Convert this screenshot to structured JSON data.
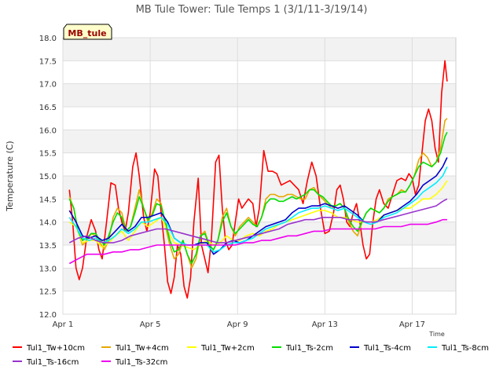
{
  "chart_data": {
    "type": "line",
    "title": "MB Tule Tower: Tule Temps 1 (3/1/11-3/19/14)",
    "xlabel": "Time",
    "ylabel": "Temperature (C)",
    "ylim": [
      12.0,
      18.0
    ],
    "xlim": [
      0,
      18
    ],
    "yticks": [
      "12.0",
      "12.5",
      "13.0",
      "13.5",
      "14.0",
      "14.5",
      "15.0",
      "15.5",
      "16.0",
      "16.5",
      "17.0",
      "17.5",
      "18.0"
    ],
    "xticks": [
      {
        "x": 0,
        "label": "Apr 1"
      },
      {
        "x": 4,
        "label": "Apr 5"
      },
      {
        "x": 8,
        "label": "Apr 9"
      },
      {
        "x": 12,
        "label": "Apr 13"
      },
      {
        "x": 16,
        "label": "Apr 17"
      }
    ],
    "annotation": "MB_tule",
    "legend_position": "bottom",
    "series": [
      {
        "name": "Tul1_Tw+10cm",
        "color": "#ff0000",
        "x": [
          0.3,
          0.45,
          0.6,
          0.75,
          0.9,
          1.1,
          1.3,
          1.5,
          1.65,
          1.8,
          2.0,
          2.2,
          2.4,
          2.55,
          2.7,
          2.85,
          3.0,
          3.2,
          3.35,
          3.5,
          3.7,
          3.85,
          4.0,
          4.2,
          4.35,
          4.5,
          4.65,
          4.8,
          4.95,
          5.1,
          5.25,
          5.4,
          5.55,
          5.7,
          5.85,
          6.0,
          6.2,
          6.35,
          6.5,
          6.65,
          6.8,
          7.0,
          7.15,
          7.3,
          7.45,
          7.6,
          7.75,
          7.9,
          8.05,
          8.2,
          8.35,
          8.5,
          8.7,
          8.85,
          9.0,
          9.2,
          9.4,
          9.6,
          9.8,
          10.0,
          10.2,
          10.4,
          10.6,
          10.8,
          11.0,
          11.2,
          11.4,
          11.6,
          11.8,
          12.0,
          12.2,
          12.4,
          12.55,
          12.7,
          12.85,
          13.0,
          13.15,
          13.3,
          13.45,
          13.6,
          13.75,
          13.9,
          14.05,
          14.2,
          14.35,
          14.5,
          14.7,
          14.9,
          15.1,
          15.3,
          15.5,
          15.7,
          15.85,
          16.0,
          16.15,
          16.3,
          16.45,
          16.6,
          16.75,
          16.9,
          17.05,
          17.2,
          17.35,
          17.5,
          17.6
        ],
        "y": [
          14.7,
          14.0,
          13.0,
          12.75,
          13.0,
          13.7,
          14.05,
          13.8,
          13.4,
          13.2,
          14.0,
          14.85,
          14.8,
          14.3,
          14.0,
          13.8,
          14.2,
          15.2,
          15.5,
          15.0,
          14.1,
          13.8,
          14.2,
          15.15,
          15.0,
          14.2,
          13.5,
          12.7,
          12.45,
          12.8,
          13.5,
          13.3,
          12.6,
          12.35,
          12.8,
          14.0,
          14.95,
          13.5,
          13.2,
          12.9,
          13.6,
          15.3,
          15.45,
          14.3,
          13.6,
          13.4,
          13.5,
          14.0,
          14.5,
          14.3,
          14.4,
          14.5,
          14.4,
          13.9,
          14.3,
          15.55,
          15.1,
          15.1,
          15.05,
          14.8,
          14.85,
          14.9,
          14.8,
          14.7,
          14.4,
          14.9,
          15.3,
          15.0,
          14.3,
          13.75,
          13.8,
          14.2,
          14.7,
          14.8,
          14.5,
          14.0,
          13.9,
          14.2,
          14.4,
          14.0,
          13.5,
          13.2,
          13.3,
          14.0,
          14.5,
          14.7,
          14.4,
          14.3,
          14.6,
          14.9,
          14.95,
          14.9,
          15.05,
          14.95,
          14.6,
          14.8,
          15.5,
          16.2,
          16.45,
          16.2,
          15.6,
          15.3,
          16.8,
          17.5,
          17.05
        ]
      },
      {
        "name": "Tul1_Tw+4cm",
        "color": "#e6a800",
        "x": [
          0.3,
          0.5,
          0.7,
          0.9,
          1.1,
          1.3,
          1.5,
          1.7,
          1.9,
          2.1,
          2.3,
          2.5,
          2.7,
          2.9,
          3.1,
          3.3,
          3.5,
          3.7,
          3.9,
          4.1,
          4.3,
          4.5,
          4.7,
          4.9,
          5.1,
          5.3,
          5.5,
          5.7,
          5.9,
          6.1,
          6.3,
          6.5,
          6.7,
          6.9,
          7.1,
          7.3,
          7.5,
          7.7,
          7.9,
          8.1,
          8.3,
          8.5,
          8.7,
          8.9,
          9.1,
          9.3,
          9.5,
          9.7,
          9.9,
          10.1,
          10.3,
          10.5,
          10.7,
          10.9,
          11.1,
          11.3,
          11.5,
          11.7,
          11.9,
          12.1,
          12.3,
          12.5,
          12.7,
          12.9,
          13.1,
          13.3,
          13.5,
          13.7,
          13.9,
          14.1,
          14.3,
          14.5,
          14.7,
          14.9,
          15.1,
          15.3,
          15.5,
          15.7,
          15.9,
          16.1,
          16.3,
          16.5,
          16.7,
          16.9,
          17.1,
          17.3,
          17.5,
          17.6
        ],
        "y": [
          14.55,
          14.3,
          13.8,
          13.5,
          13.6,
          13.75,
          13.7,
          13.55,
          13.4,
          13.6,
          14.1,
          14.3,
          14.2,
          13.8,
          13.9,
          14.3,
          14.7,
          14.3,
          14.0,
          14.2,
          14.5,
          14.4,
          13.9,
          13.5,
          13.2,
          13.3,
          13.6,
          13.3,
          13.0,
          13.2,
          13.7,
          13.8,
          13.5,
          13.4,
          13.6,
          14.1,
          14.3,
          13.9,
          13.7,
          13.9,
          14.0,
          14.1,
          14.0,
          13.9,
          14.1,
          14.5,
          14.6,
          14.6,
          14.55,
          14.55,
          14.6,
          14.6,
          14.55,
          14.5,
          14.5,
          14.7,
          14.75,
          14.6,
          14.5,
          14.4,
          14.3,
          14.35,
          14.4,
          14.3,
          14.0,
          13.8,
          13.7,
          14.0,
          14.2,
          14.3,
          14.25,
          14.2,
          14.3,
          14.5,
          14.55,
          14.6,
          14.7,
          14.65,
          14.8,
          15.0,
          15.35,
          15.5,
          15.4,
          15.2,
          15.3,
          15.6,
          16.2,
          16.25
        ]
      },
      {
        "name": "Tul1_Tw+2cm",
        "color": "#ffff00",
        "x": [
          0.3,
          0.6,
          0.9,
          1.2,
          1.5,
          1.8,
          2.1,
          2.4,
          2.7,
          3.0,
          3.3,
          3.6,
          3.9,
          4.2,
          4.5,
          4.8,
          5.1,
          5.4,
          5.7,
          6.0,
          6.3,
          6.6,
          6.9,
          7.2,
          7.5,
          7.8,
          8.1,
          8.4,
          8.7,
          9.0,
          9.3,
          9.6,
          9.9,
          10.2,
          10.5,
          10.8,
          11.1,
          11.4,
          11.7,
          12.0,
          12.3,
          12.6,
          12.9,
          13.2,
          13.5,
          13.8,
          14.1,
          14.4,
          14.7,
          15.0,
          15.3,
          15.6,
          15.9,
          16.2,
          16.5,
          16.8,
          17.1,
          17.4,
          17.6
        ],
        "y": [
          14.0,
          13.9,
          13.55,
          13.6,
          13.6,
          13.45,
          13.55,
          13.7,
          13.8,
          13.6,
          13.8,
          14.0,
          13.9,
          14.0,
          14.1,
          13.8,
          13.55,
          13.5,
          13.45,
          13.4,
          13.5,
          13.6,
          13.5,
          13.55,
          13.7,
          13.6,
          13.6,
          13.7,
          13.75,
          13.7,
          13.8,
          13.85,
          13.95,
          14.0,
          14.05,
          14.1,
          14.15,
          14.2,
          14.25,
          14.25,
          14.2,
          14.1,
          14.1,
          14.05,
          14.0,
          14.0,
          14.0,
          14.05,
          14.15,
          14.2,
          14.25,
          14.3,
          14.3,
          14.4,
          14.5,
          14.5,
          14.6,
          14.75,
          14.9
        ]
      },
      {
        "name": "Tul1_Ts-2cm",
        "color": "#00dd00",
        "x": [
          0.3,
          0.5,
          0.7,
          0.9,
          1.1,
          1.3,
          1.5,
          1.7,
          1.9,
          2.1,
          2.3,
          2.5,
          2.7,
          2.9,
          3.1,
          3.3,
          3.5,
          3.7,
          3.9,
          4.1,
          4.3,
          4.5,
          4.7,
          4.9,
          5.1,
          5.3,
          5.5,
          5.7,
          5.9,
          6.1,
          6.3,
          6.5,
          6.7,
          6.9,
          7.1,
          7.3,
          7.5,
          7.7,
          7.9,
          8.1,
          8.3,
          8.5,
          8.7,
          8.9,
          9.1,
          9.3,
          9.5,
          9.7,
          9.9,
          10.1,
          10.3,
          10.5,
          10.7,
          10.9,
          11.1,
          11.3,
          11.5,
          11.7,
          11.9,
          12.1,
          12.3,
          12.5,
          12.7,
          12.9,
          13.1,
          13.3,
          13.5,
          13.7,
          13.9,
          14.1,
          14.3,
          14.5,
          14.7,
          14.9,
          15.1,
          15.3,
          15.5,
          15.7,
          15.9,
          16.1,
          16.3,
          16.5,
          16.7,
          16.9,
          17.1,
          17.3,
          17.5,
          17.6
        ],
        "y": [
          14.5,
          14.3,
          13.8,
          13.6,
          13.65,
          13.75,
          13.75,
          13.6,
          13.5,
          13.7,
          14.0,
          14.2,
          14.1,
          13.8,
          13.9,
          14.2,
          14.55,
          14.3,
          14.05,
          14.15,
          14.4,
          14.35,
          14.0,
          13.6,
          13.35,
          13.4,
          13.6,
          13.3,
          13.1,
          13.3,
          13.7,
          13.75,
          13.5,
          13.4,
          13.6,
          14.0,
          14.2,
          13.9,
          13.75,
          13.85,
          13.95,
          14.05,
          13.95,
          13.9,
          14.1,
          14.4,
          14.5,
          14.5,
          14.45,
          14.45,
          14.5,
          14.55,
          14.5,
          14.55,
          14.6,
          14.7,
          14.7,
          14.6,
          14.55,
          14.45,
          14.35,
          14.35,
          14.4,
          14.3,
          14.05,
          13.9,
          13.8,
          14.0,
          14.2,
          14.3,
          14.25,
          14.2,
          14.3,
          14.45,
          14.55,
          14.6,
          14.65,
          14.65,
          14.8,
          15.0,
          15.2,
          15.3,
          15.25,
          15.2,
          15.3,
          15.5,
          15.85,
          15.95
        ]
      },
      {
        "name": "Tul1_Ts-4cm",
        "color": "#0000cc",
        "x": [
          0.3,
          0.6,
          0.9,
          1.2,
          1.5,
          1.8,
          2.1,
          2.4,
          2.7,
          3.0,
          3.3,
          3.6,
          3.9,
          4.2,
          4.5,
          4.8,
          5.1,
          5.4,
          5.7,
          6.0,
          6.3,
          6.6,
          6.9,
          7.2,
          7.5,
          7.8,
          8.1,
          8.4,
          8.7,
          9.0,
          9.3,
          9.6,
          9.9,
          10.2,
          10.5,
          10.8,
          11.1,
          11.4,
          11.7,
          12.0,
          12.3,
          12.6,
          12.9,
          13.2,
          13.5,
          13.8,
          14.1,
          14.4,
          14.7,
          15.0,
          15.3,
          15.6,
          15.9,
          16.2,
          16.5,
          16.8,
          17.1,
          17.4,
          17.6
        ],
        "y": [
          14.25,
          14.0,
          13.7,
          13.65,
          13.7,
          13.6,
          13.65,
          13.8,
          13.95,
          13.8,
          13.9,
          14.1,
          14.1,
          14.15,
          14.2,
          14.0,
          13.65,
          13.55,
          13.5,
          13.5,
          13.55,
          13.55,
          13.3,
          13.4,
          13.55,
          13.6,
          13.55,
          13.6,
          13.7,
          13.8,
          13.9,
          13.95,
          14.0,
          14.05,
          14.2,
          14.3,
          14.3,
          14.35,
          14.35,
          14.4,
          14.35,
          14.3,
          14.35,
          14.25,
          14.15,
          14.0,
          14.0,
          14.0,
          14.15,
          14.2,
          14.25,
          14.35,
          14.45,
          14.6,
          14.8,
          14.9,
          15.0,
          15.2,
          15.4
        ]
      },
      {
        "name": "Tul1_Ts-8cm",
        "color": "#00eeff",
        "x": [
          0.3,
          0.6,
          0.9,
          1.2,
          1.5,
          1.8,
          2.1,
          2.4,
          2.7,
          3.0,
          3.3,
          3.6,
          3.9,
          4.2,
          4.5,
          4.8,
          5.1,
          5.4,
          5.7,
          6.0,
          6.3,
          6.6,
          6.9,
          7.2,
          7.5,
          7.8,
          8.1,
          8.4,
          8.7,
          9.0,
          9.3,
          9.6,
          9.9,
          10.2,
          10.5,
          10.8,
          11.1,
          11.4,
          11.7,
          12.0,
          12.3,
          12.6,
          12.9,
          13.2,
          13.5,
          13.8,
          14.1,
          14.4,
          14.7,
          15.0,
          15.3,
          15.6,
          15.9,
          16.2,
          16.5,
          16.8,
          17.1,
          17.4,
          17.6
        ],
        "y": [
          14.1,
          13.9,
          13.65,
          13.6,
          13.65,
          13.55,
          13.6,
          13.7,
          13.85,
          13.75,
          13.85,
          14.0,
          14.0,
          14.05,
          14.1,
          13.95,
          13.65,
          13.55,
          13.5,
          13.5,
          13.5,
          13.5,
          13.35,
          13.4,
          13.5,
          13.55,
          13.55,
          13.6,
          13.65,
          13.75,
          13.85,
          13.9,
          13.95,
          14.0,
          14.1,
          14.2,
          14.25,
          14.3,
          14.3,
          14.35,
          14.3,
          14.25,
          14.3,
          14.2,
          14.1,
          14.0,
          13.95,
          14.0,
          14.1,
          14.15,
          14.2,
          14.3,
          14.4,
          14.5,
          14.65,
          14.75,
          14.85,
          15.0,
          15.2
        ]
      },
      {
        "name": "Tul1_Ts-16cm",
        "color": "#9933cc",
        "x": [
          0.3,
          0.7,
          1.1,
          1.5,
          1.9,
          2.3,
          2.7,
          3.1,
          3.5,
          3.9,
          4.3,
          4.7,
          5.1,
          5.5,
          5.9,
          6.3,
          6.7,
          7.1,
          7.5,
          7.9,
          8.3,
          8.7,
          9.1,
          9.5,
          9.9,
          10.3,
          10.7,
          11.1,
          11.5,
          11.9,
          12.3,
          12.7,
          13.1,
          13.5,
          13.9,
          14.3,
          14.7,
          15.1,
          15.5,
          15.9,
          16.3,
          16.7,
          17.1,
          17.4,
          17.6
        ],
        "y": [
          13.55,
          13.65,
          13.7,
          13.6,
          13.55,
          13.55,
          13.6,
          13.7,
          13.75,
          13.8,
          13.85,
          13.85,
          13.8,
          13.75,
          13.7,
          13.65,
          13.6,
          13.55,
          13.55,
          13.6,
          13.65,
          13.7,
          13.75,
          13.8,
          13.85,
          13.95,
          14.0,
          14.05,
          14.05,
          14.1,
          14.1,
          14.1,
          14.05,
          14.05,
          14.0,
          14.0,
          14.05,
          14.1,
          14.15,
          14.2,
          14.25,
          14.3,
          14.35,
          14.45,
          14.5
        ]
      },
      {
        "name": "Tul1_Ts-32cm",
        "color": "#ee00ee",
        "x": [
          0.3,
          0.7,
          1.1,
          1.5,
          1.9,
          2.3,
          2.7,
          3.1,
          3.5,
          3.9,
          4.3,
          4.7,
          5.1,
          5.5,
          5.9,
          6.3,
          6.7,
          7.1,
          7.5,
          7.9,
          8.3,
          8.7,
          9.1,
          9.5,
          9.9,
          10.3,
          10.7,
          11.1,
          11.5,
          11.9,
          12.3,
          12.7,
          13.1,
          13.5,
          13.9,
          14.3,
          14.7,
          15.1,
          15.5,
          15.9,
          16.3,
          16.7,
          17.1,
          17.4,
          17.6
        ],
        "y": [
          13.1,
          13.2,
          13.3,
          13.3,
          13.3,
          13.35,
          13.35,
          13.4,
          13.4,
          13.45,
          13.5,
          13.5,
          13.5,
          13.5,
          13.5,
          13.5,
          13.5,
          13.5,
          13.5,
          13.5,
          13.55,
          13.55,
          13.6,
          13.6,
          13.65,
          13.7,
          13.7,
          13.75,
          13.8,
          13.8,
          13.85,
          13.85,
          13.85,
          13.85,
          13.85,
          13.85,
          13.9,
          13.9,
          13.9,
          13.95,
          13.95,
          13.95,
          14.0,
          14.05,
          14.05
        ]
      }
    ]
  }
}
